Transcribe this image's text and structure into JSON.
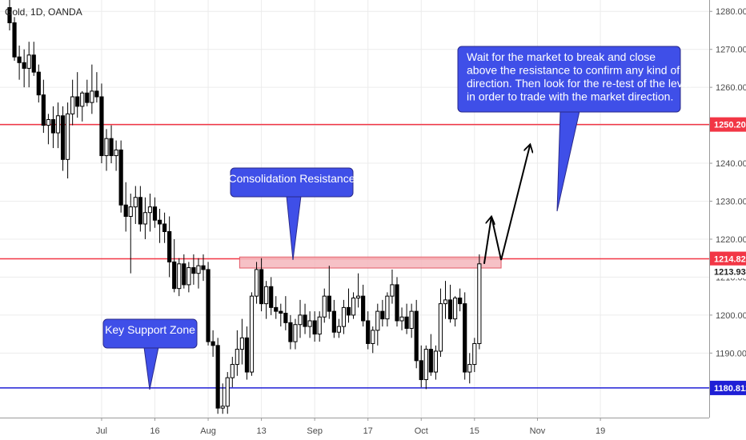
{
  "chart_data": {
    "type": "candlestick",
    "title": "Gold, 1D, OANDA",
    "ylim": [
      1173,
      1283
    ],
    "yticks": [
      "1190.000",
      "1200.000",
      "1210.000",
      "1220.000",
      "1230.000",
      "1240.000",
      "1250.000",
      "1260.000",
      "1270.000",
      "1280.000"
    ],
    "xticks": [
      {
        "label": "Jul",
        "day": 19
      },
      {
        "label": "16",
        "day": 30
      },
      {
        "label": "Aug",
        "day": 41
      },
      {
        "label": "13",
        "day": 52
      },
      {
        "label": "Sep",
        "day": 63
      },
      {
        "label": "17",
        "day": 74
      },
      {
        "label": "Oct",
        "day": 85
      },
      {
        "label": "15",
        "day": 96
      },
      {
        "label": "Nov",
        "day": 109
      },
      {
        "label": "19",
        "day": 122
      }
    ],
    "levels": [
      {
        "name": "resistance-high",
        "value": 1250.206,
        "label": "1250.206",
        "color": "#f23645"
      },
      {
        "name": "consolidation-resistance",
        "value": 1214.82,
        "label": "1214.820",
        "color": "#f23645"
      },
      {
        "name": "key-support",
        "value": 1180.812,
        "label": "1180.812",
        "color": "#1f1fd6"
      }
    ],
    "current_price": {
      "value": 1213.934,
      "label": "1213.934"
    },
    "zone": {
      "day_start": 47.5,
      "day_end": 101.5,
      "low": 1212.4,
      "high": 1215.3
    },
    "candles": [
      {
        "d": 0,
        "o": 1281,
        "h": 1283.2,
        "l": 1275,
        "c": 1277
      },
      {
        "d": 1,
        "o": 1277,
        "h": 1278.5,
        "l": 1267,
        "c": 1268
      },
      {
        "d": 2,
        "o": 1268,
        "h": 1271,
        "l": 1262,
        "c": 1266.5
      },
      {
        "d": 3,
        "o": 1266.5,
        "h": 1270,
        "l": 1260,
        "c": 1265
      },
      {
        "d": 4,
        "o": 1265,
        "h": 1272,
        "l": 1260,
        "c": 1268.5
      },
      {
        "d": 5,
        "o": 1268.5,
        "h": 1272,
        "l": 1263,
        "c": 1264
      },
      {
        "d": 6,
        "o": 1264,
        "h": 1266,
        "l": 1256,
        "c": 1258
      },
      {
        "d": 7,
        "o": 1258,
        "h": 1262,
        "l": 1248,
        "c": 1250
      },
      {
        "d": 8,
        "o": 1250,
        "h": 1253,
        "l": 1245,
        "c": 1251.5
      },
      {
        "d": 9,
        "o": 1251.5,
        "h": 1255,
        "l": 1244,
        "c": 1248
      },
      {
        "d": 10,
        "o": 1248,
        "h": 1256,
        "l": 1244,
        "c": 1252.5
      },
      {
        "d": 11,
        "o": 1252.5,
        "h": 1255,
        "l": 1238,
        "c": 1241
      },
      {
        "d": 12,
        "o": 1241,
        "h": 1256,
        "l": 1236,
        "c": 1253
      },
      {
        "d": 13,
        "o": 1253,
        "h": 1262,
        "l": 1250,
        "c": 1257.5
      },
      {
        "d": 14,
        "o": 1257.5,
        "h": 1264,
        "l": 1252,
        "c": 1255
      },
      {
        "d": 15,
        "o": 1255,
        "h": 1259,
        "l": 1251,
        "c": 1258.5
      },
      {
        "d": 16,
        "o": 1258.5,
        "h": 1262,
        "l": 1255,
        "c": 1256
      },
      {
        "d": 17,
        "o": 1256,
        "h": 1266,
        "l": 1253,
        "c": 1259
      },
      {
        "d": 18,
        "o": 1259,
        "h": 1264,
        "l": 1256,
        "c": 1257.5
      },
      {
        "d": 19,
        "o": 1257.5,
        "h": 1261,
        "l": 1240,
        "c": 1242
      },
      {
        "d": 20,
        "o": 1242,
        "h": 1249,
        "l": 1238,
        "c": 1246.5
      },
      {
        "d": 21,
        "o": 1246.5,
        "h": 1250,
        "l": 1240,
        "c": 1242
      },
      {
        "d": 22,
        "o": 1242,
        "h": 1246,
        "l": 1238,
        "c": 1243.5
      },
      {
        "d": 23,
        "o": 1243.5,
        "h": 1246,
        "l": 1227,
        "c": 1229
      },
      {
        "d": 24,
        "o": 1229,
        "h": 1235,
        "l": 1222,
        "c": 1226
      },
      {
        "d": 25,
        "o": 1226,
        "h": 1232,
        "l": 1211,
        "c": 1228.5
      },
      {
        "d": 26,
        "o": 1228.5,
        "h": 1234,
        "l": 1224,
        "c": 1231
      },
      {
        "d": 27,
        "o": 1231,
        "h": 1234,
        "l": 1222,
        "c": 1224
      },
      {
        "d": 28,
        "o": 1224,
        "h": 1231,
        "l": 1220,
        "c": 1227
      },
      {
        "d": 29,
        "o": 1227,
        "h": 1232,
        "l": 1222,
        "c": 1228.5
      },
      {
        "d": 30,
        "o": 1228.5,
        "h": 1231,
        "l": 1223,
        "c": 1225
      },
      {
        "d": 31,
        "o": 1225,
        "h": 1228,
        "l": 1219,
        "c": 1224
      },
      {
        "d": 32,
        "o": 1224,
        "h": 1227,
        "l": 1219,
        "c": 1222
      },
      {
        "d": 33,
        "o": 1222,
        "h": 1226,
        "l": 1210,
        "c": 1214
      },
      {
        "d": 34,
        "o": 1214,
        "h": 1220,
        "l": 1206,
        "c": 1207
      },
      {
        "d": 35,
        "o": 1207,
        "h": 1215,
        "l": 1205,
        "c": 1213.5
      },
      {
        "d": 36,
        "o": 1213.5,
        "h": 1216,
        "l": 1207,
        "c": 1208
      },
      {
        "d": 37,
        "o": 1208,
        "h": 1214,
        "l": 1206,
        "c": 1212.5
      },
      {
        "d": 38,
        "o": 1212.5,
        "h": 1216,
        "l": 1208,
        "c": 1211
      },
      {
        "d": 39,
        "o": 1211,
        "h": 1215,
        "l": 1207,
        "c": 1213
      },
      {
        "d": 40,
        "o": 1213,
        "h": 1216,
        "l": 1209,
        "c": 1212
      },
      {
        "d": 41,
        "o": 1212,
        "h": 1214,
        "l": 1192,
        "c": 1193
      },
      {
        "d": 42,
        "o": 1193,
        "h": 1196,
        "l": 1189,
        "c": 1192
      },
      {
        "d": 43,
        "o": 1192,
        "h": 1194,
        "l": 1174,
        "c": 1175.5
      },
      {
        "d": 44,
        "o": 1175.5,
        "h": 1182,
        "l": 1174,
        "c": 1176
      },
      {
        "d": 45,
        "o": 1176,
        "h": 1185,
        "l": 1174,
        "c": 1183.5
      },
      {
        "d": 46,
        "o": 1183.5,
        "h": 1189,
        "l": 1181,
        "c": 1187
      },
      {
        "d": 47,
        "o": 1187,
        "h": 1196,
        "l": 1184,
        "c": 1191
      },
      {
        "d": 48,
        "o": 1191,
        "h": 1199,
        "l": 1187,
        "c": 1194
      },
      {
        "d": 49,
        "o": 1194,
        "h": 1197,
        "l": 1183,
        "c": 1185
      },
      {
        "d": 50,
        "o": 1185,
        "h": 1206,
        "l": 1184,
        "c": 1205
      },
      {
        "d": 51,
        "o": 1205,
        "h": 1214,
        "l": 1203,
        "c": 1212
      },
      {
        "d": 52,
        "o": 1212,
        "h": 1215,
        "l": 1201,
        "c": 1203
      },
      {
        "d": 53,
        "o": 1203,
        "h": 1209,
        "l": 1199,
        "c": 1207.5
      },
      {
        "d": 54,
        "o": 1207.5,
        "h": 1210,
        "l": 1200,
        "c": 1202
      },
      {
        "d": 55,
        "o": 1202,
        "h": 1205,
        "l": 1199,
        "c": 1201
      },
      {
        "d": 56,
        "o": 1201,
        "h": 1203,
        "l": 1197,
        "c": 1200.5
      },
      {
        "d": 57,
        "o": 1200.5,
        "h": 1205,
        "l": 1196,
        "c": 1198
      },
      {
        "d": 58,
        "o": 1198,
        "h": 1200,
        "l": 1191,
        "c": 1193
      },
      {
        "d": 59,
        "o": 1193,
        "h": 1199,
        "l": 1191,
        "c": 1197.5
      },
      {
        "d": 60,
        "o": 1197.5,
        "h": 1204,
        "l": 1194,
        "c": 1200
      },
      {
        "d": 61,
        "o": 1200,
        "h": 1203,
        "l": 1195,
        "c": 1197
      },
      {
        "d": 62,
        "o": 1197,
        "h": 1201,
        "l": 1194,
        "c": 1198.5
      },
      {
        "d": 63,
        "o": 1198.5,
        "h": 1201,
        "l": 1193,
        "c": 1195
      },
      {
        "d": 64,
        "o": 1195,
        "h": 1201,
        "l": 1193,
        "c": 1199.5
      },
      {
        "d": 65,
        "o": 1199.5,
        "h": 1207,
        "l": 1198,
        "c": 1205
      },
      {
        "d": 66,
        "o": 1205,
        "h": 1213,
        "l": 1199,
        "c": 1201
      },
      {
        "d": 67,
        "o": 1201,
        "h": 1204,
        "l": 1194,
        "c": 1195.5
      },
      {
        "d": 68,
        "o": 1195.5,
        "h": 1199,
        "l": 1194,
        "c": 1197
      },
      {
        "d": 69,
        "o": 1197,
        "h": 1204,
        "l": 1195,
        "c": 1202
      },
      {
        "d": 70,
        "o": 1202,
        "h": 1207,
        "l": 1198,
        "c": 1200
      },
      {
        "d": 71,
        "o": 1200,
        "h": 1206,
        "l": 1199,
        "c": 1204.5
      },
      {
        "d": 72,
        "o": 1204.5,
        "h": 1211,
        "l": 1202,
        "c": 1205
      },
      {
        "d": 73,
        "o": 1205,
        "h": 1208,
        "l": 1197,
        "c": 1198.5
      },
      {
        "d": 74,
        "o": 1198.5,
        "h": 1201,
        "l": 1191,
        "c": 1192.5
      },
      {
        "d": 75,
        "o": 1192.5,
        "h": 1197,
        "l": 1190,
        "c": 1196
      },
      {
        "d": 76,
        "o": 1196,
        "h": 1203,
        "l": 1192,
        "c": 1201
      },
      {
        "d": 77,
        "o": 1201,
        "h": 1204,
        "l": 1197,
        "c": 1199
      },
      {
        "d": 78,
        "o": 1199,
        "h": 1206,
        "l": 1197,
        "c": 1205
      },
      {
        "d": 79,
        "o": 1205,
        "h": 1212,
        "l": 1203,
        "c": 1208
      },
      {
        "d": 80,
        "o": 1208,
        "h": 1210,
        "l": 1197,
        "c": 1198.5
      },
      {
        "d": 81,
        "o": 1198.5,
        "h": 1202,
        "l": 1196,
        "c": 1199.5
      },
      {
        "d": 82,
        "o": 1199.5,
        "h": 1203,
        "l": 1195,
        "c": 1196.5
      },
      {
        "d": 83,
        "o": 1196.5,
        "h": 1203,
        "l": 1194,
        "c": 1201
      },
      {
        "d": 84,
        "o": 1201,
        "h": 1204,
        "l": 1186,
        "c": 1188
      },
      {
        "d": 85,
        "o": 1188,
        "h": 1192,
        "l": 1181,
        "c": 1183
      },
      {
        "d": 86,
        "o": 1183,
        "h": 1192,
        "l": 1180.5,
        "c": 1191
      },
      {
        "d": 87,
        "o": 1191,
        "h": 1195,
        "l": 1184,
        "c": 1185
      },
      {
        "d": 88,
        "o": 1185,
        "h": 1192,
        "l": 1183,
        "c": 1190.5
      },
      {
        "d": 89,
        "o": 1190.5,
        "h": 1207,
        "l": 1189,
        "c": 1203
      },
      {
        "d": 90,
        "o": 1203,
        "h": 1209,
        "l": 1199,
        "c": 1204
      },
      {
        "d": 91,
        "o": 1204,
        "h": 1208,
        "l": 1198,
        "c": 1199
      },
      {
        "d": 92,
        "o": 1199,
        "h": 1205,
        "l": 1197,
        "c": 1204.5
      },
      {
        "d": 93,
        "o": 1204.5,
        "h": 1207,
        "l": 1201,
        "c": 1203
      },
      {
        "d": 94,
        "o": 1203,
        "h": 1206,
        "l": 1183,
        "c": 1185
      },
      {
        "d": 95,
        "o": 1185,
        "h": 1190,
        "l": 1182,
        "c": 1187
      },
      {
        "d": 96,
        "o": 1187,
        "h": 1194,
        "l": 1185,
        "c": 1192.5
      },
      {
        "d": 97,
        "o": 1192.5,
        "h": 1216,
        "l": 1191,
        "c": 1213.5
      }
    ],
    "annotations": [
      {
        "name": "callout-direction",
        "text": [
          "Wait for the market to break and close",
          "above the resistance to confirm any kind of",
          "direction. Then look for the re-test of the level",
          "in order to trade with the market direction."
        ]
      },
      {
        "name": "callout-consolidation",
        "text": [
          "Consolidation Resistance"
        ]
      },
      {
        "name": "callout-support",
        "text": [
          "Key Support Zone"
        ]
      }
    ],
    "projection_path": [
      {
        "d": 98,
        "p": 1213.5
      },
      {
        "d": 99.5,
        "p": 1226
      },
      {
        "d": 101.5,
        "p": 1214.5
      },
      {
        "d": 107.5,
        "p": 1245
      }
    ],
    "colors": {
      "bull": "#ffffff",
      "bear": "#000000",
      "wick": "#000000",
      "grid": "#ececec",
      "callout_fill": "#3f4fe8",
      "zone_fill": "#f5b6bc",
      "zone_stroke": "#e35a66"
    }
  }
}
